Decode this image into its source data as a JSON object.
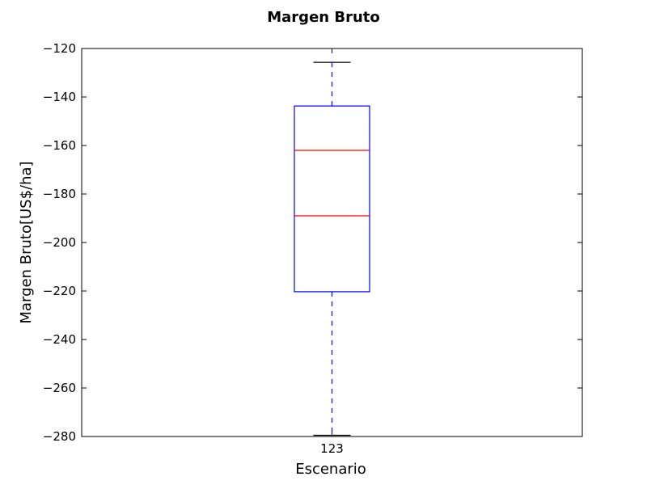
{
  "chart_data": {
    "type": "boxplot",
    "title": "Margen Bruto",
    "xlabel": "Escenario",
    "ylabel": "Margen Bruto[US$/ha]",
    "ylim": [
      -280,
      -120
    ],
    "yticks": [
      -120,
      -140,
      -160,
      -180,
      -200,
      -220,
      -240,
      -260,
      -280
    ],
    "ytick_labels": [
      "−120",
      "−140",
      "−160",
      "−180",
      "−200",
      "−220",
      "−240",
      "−260",
      "−280"
    ],
    "categories": [
      "123"
    ],
    "boxes": [
      {
        "label": "123",
        "whisker_low": -279.5,
        "q1": -220.3,
        "median_lines": [
          -162,
          -189
        ],
        "q3": -143.7,
        "whisker_high": -125.7
      }
    ],
    "colors": {
      "box": "#0000ff",
      "median": "#ff0000",
      "whisker": "#0000ff",
      "cap": "#000000",
      "axes": "#000000"
    },
    "grid": false,
    "legend": "none"
  }
}
